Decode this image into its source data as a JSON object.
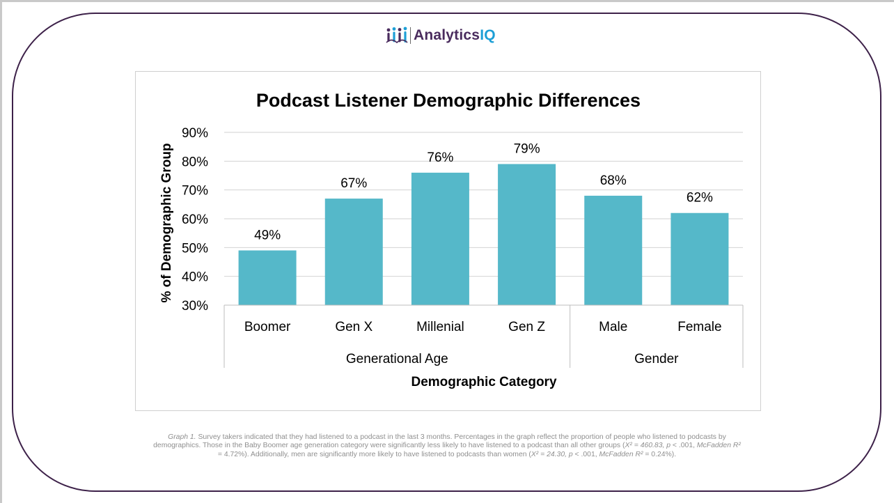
{
  "brand": {
    "name_main": "Analytics",
    "name_accent": "IQ",
    "purple": "#4a2c5e",
    "blue": "#1d9fd6"
  },
  "chart_data": {
    "type": "bar",
    "title": "Podcast Listener Demographic Differences",
    "ylabel": "% of Demographic Group",
    "xlabel": "Demographic Category",
    "ylim": [
      30,
      90
    ],
    "yticks": [
      90,
      80,
      70,
      60,
      50,
      40,
      30
    ],
    "ytick_labels": [
      "90%",
      "80%",
      "70%",
      "60%",
      "50%",
      "40%",
      "30%"
    ],
    "categories": [
      "Boomer",
      "Gen X",
      "Millenial",
      "Gen Z",
      "Male",
      "Female"
    ],
    "values": [
      49,
      67,
      76,
      79,
      68,
      62
    ],
    "data_labels": [
      "49%",
      "67%",
      "76%",
      "79%",
      "68%",
      "62%"
    ],
    "groups": [
      {
        "name": "Generational Age",
        "count": 4
      },
      {
        "name": "Gender",
        "count": 2
      }
    ],
    "bar_color": "#55b8c9",
    "grid": true
  },
  "caption": {
    "graph_label": "Graph 1.",
    "line1": "Survey takers indicated that they had listened to a podcast in the last 3 months. Percentages in the graph reflect the proportion of people who listened to podcasts by",
    "line2_a": "demographics. Those in the Baby Boomer age generation category were significantly less likely to have listened to a podcast than all other groups (",
    "stat1_chi": "X² = 460.83, ",
    "stat1_p": "p",
    "stat1_rest": " < .001, ",
    "stat1_mcf": "McFadden R²",
    "line3_a": "= 4.72%). Additionally, men are significantly more likely to have listened to podcasts than women (",
    "stat2_chi": "X² = 24.30, ",
    "stat2_p": "p",
    "stat2_rest": " < .001, ",
    "stat2_mcf": "McFadden R²",
    "line3_b": " = 0.24%)."
  }
}
